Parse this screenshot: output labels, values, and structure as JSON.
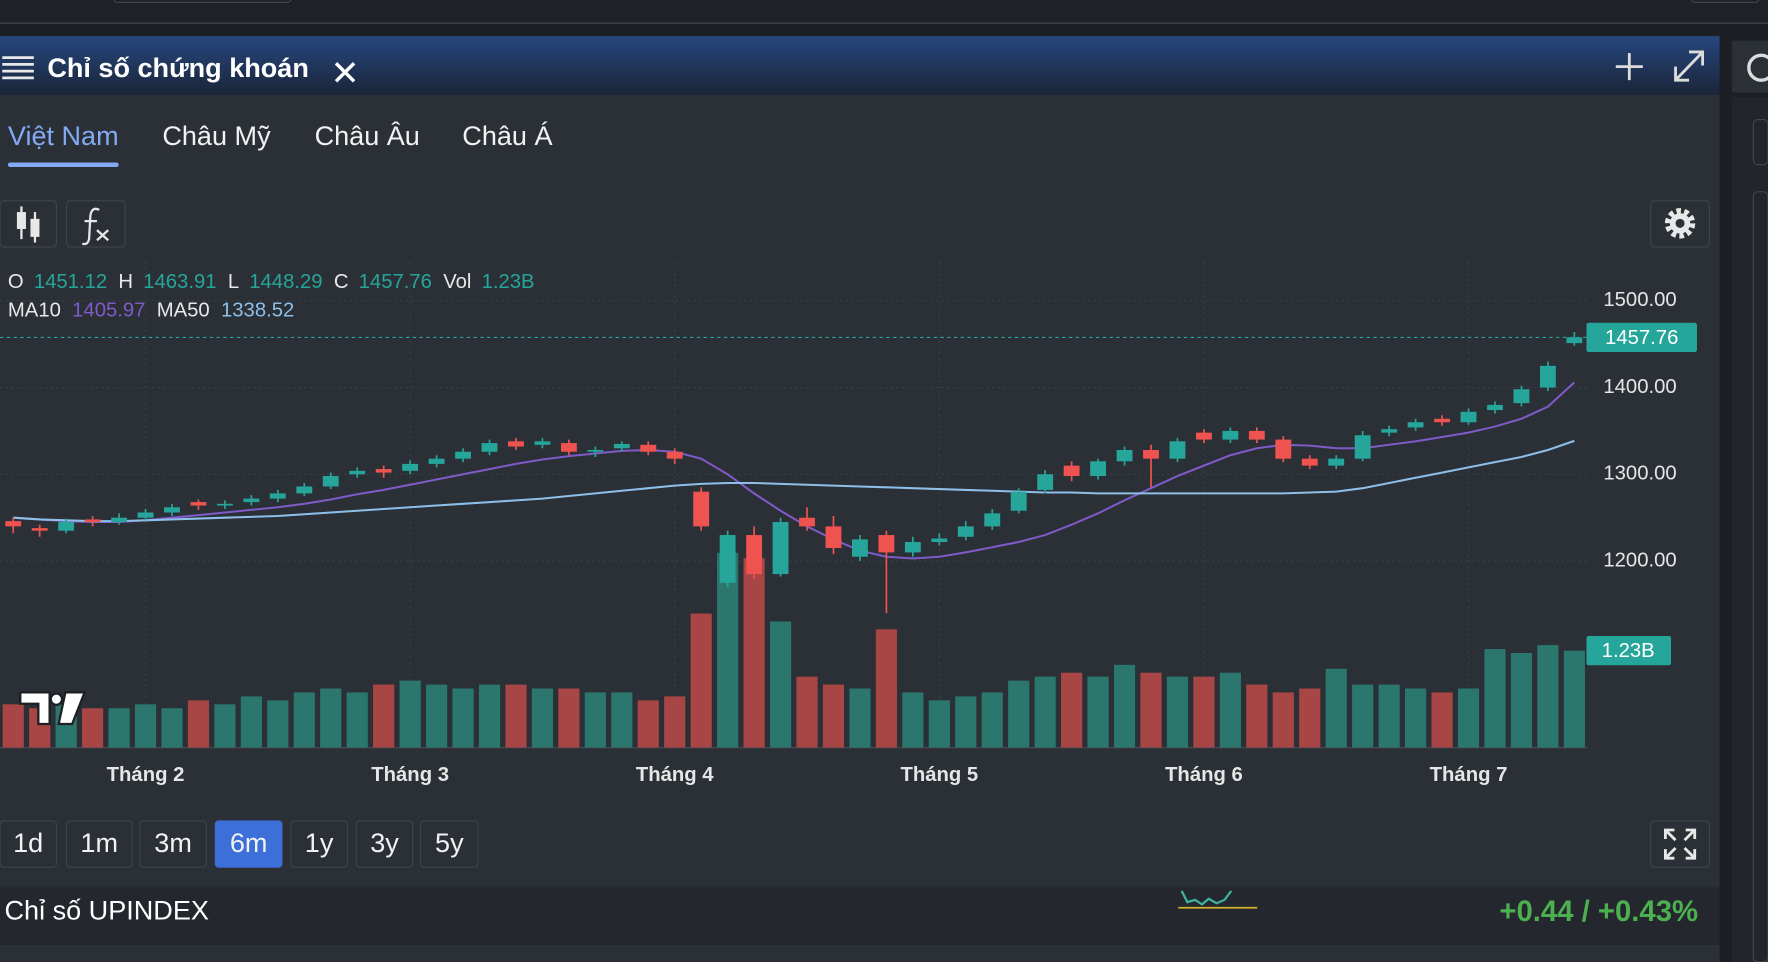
{
  "ui": {
    "header_title": "Chỉ số chứng khoán",
    "tabs": [
      "Việt Nam",
      "Châu Mỹ",
      "Châu Âu",
      "Châu Á"
    ],
    "active_tab": 0,
    "ranges": [
      "1d",
      "1m",
      "3m",
      "6m",
      "1y",
      "3y",
      "5y"
    ],
    "active_range": 3,
    "footer": {
      "name": "Chỉ số UPINDEX",
      "change": "+0.44 / +0.43%"
    }
  },
  "chart_data": {
    "type": "candlestick",
    "categories": [
      null,
      null,
      null,
      null,
      null,
      "Tháng 2",
      null,
      null,
      null,
      null,
      null,
      null,
      null,
      null,
      null,
      "Tháng 3",
      null,
      null,
      null,
      null,
      null,
      null,
      null,
      null,
      null,
      "Tháng 4",
      null,
      null,
      null,
      null,
      null,
      null,
      null,
      null,
      null,
      "Tháng 5",
      null,
      null,
      null,
      null,
      null,
      null,
      null,
      null,
      null,
      "Tháng 6",
      null,
      null,
      null,
      null,
      null,
      null,
      null,
      null,
      null,
      "Tháng 7",
      null,
      null,
      null,
      null
    ],
    "ohlc_labels": [
      "O",
      "H",
      "L",
      "C"
    ],
    "open": [
      1246,
      1238,
      1235,
      1248,
      1245,
      1250,
      1256,
      1268,
      1264,
      1268,
      1272,
      1278,
      1286,
      1300,
      1306,
      1304,
      1312,
      1318,
      1326,
      1338,
      1334,
      1336,
      1326,
      1330,
      1334,
      1326,
      1280,
      1175,
      1230,
      1185,
      1250,
      1240,
      1205,
      1230,
      1210,
      1222,
      1228,
      1240,
      1258,
      1282,
      1310,
      1298,
      1315,
      1328,
      1318,
      1348,
      1340,
      1350,
      1340,
      1318,
      1310,
      1318,
      1348,
      1354,
      1364,
      1360,
      1374,
      1382,
      1400,
      1451.12
    ],
    "high": [
      1250,
      1242,
      1249,
      1252,
      1255,
      1260,
      1266,
      1271,
      1270,
      1276,
      1282,
      1290,
      1302,
      1308,
      1310,
      1316,
      1322,
      1330,
      1340,
      1342,
      1342,
      1340,
      1332,
      1338,
      1338,
      1330,
      1285,
      1235,
      1240,
      1250,
      1262,
      1252,
      1230,
      1235,
      1228,
      1232,
      1246,
      1260,
      1284,
      1305,
      1315,
      1318,
      1332,
      1334,
      1342,
      1352,
      1354,
      1354,
      1344,
      1322,
      1322,
      1350,
      1356,
      1364,
      1368,
      1376,
      1384,
      1402,
      1430,
      1463.91
    ],
    "low": [
      1232,
      1228,
      1232,
      1240,
      1242,
      1247,
      1252,
      1259,
      1260,
      1264,
      1268,
      1275,
      1283,
      1296,
      1296,
      1300,
      1308,
      1314,
      1322,
      1328,
      1330,
      1322,
      1320,
      1326,
      1322,
      1312,
      1235,
      1170,
      1180,
      1182,
      1235,
      1208,
      1200,
      1140,
      1205,
      1218,
      1224,
      1236,
      1255,
      1278,
      1292,
      1294,
      1310,
      1285,
      1314,
      1336,
      1336,
      1336,
      1314,
      1306,
      1306,
      1315,
      1344,
      1350,
      1356,
      1357,
      1370,
      1378,
      1396,
      1448.29
    ],
    "close": [
      1240,
      1235,
      1245,
      1245,
      1250,
      1256,
      1262,
      1264,
      1266,
      1272,
      1278,
      1286,
      1298,
      1304,
      1302,
      1312,
      1318,
      1326,
      1336,
      1332,
      1338,
      1326,
      1328,
      1335,
      1326,
      1318,
      1240,
      1230,
      1185,
      1245,
      1240,
      1215,
      1225,
      1210,
      1222,
      1226,
      1240,
      1255,
      1280,
      1300,
      1298,
      1315,
      1328,
      1318,
      1338,
      1340,
      1350,
      1340,
      1318,
      1310,
      1318,
      1345,
      1352,
      1360,
      1360,
      1372,
      1380,
      1398,
      1425,
      1457.76
    ],
    "colors": {
      "up": "#26a69a",
      "down": "#ef5350"
    },
    "volume": {
      "name": "Vol",
      "axis": "y2",
      "colors": {
        "up": "#2b776d",
        "down": "#a84646"
      },
      "values": [
        0.55,
        0.5,
        0.55,
        0.5,
        0.5,
        0.55,
        0.5,
        0.6,
        0.55,
        0.65,
        0.6,
        0.7,
        0.75,
        0.7,
        0.8,
        0.85,
        0.8,
        0.75,
        0.8,
        0.8,
        0.75,
        0.75,
        0.7,
        0.7,
        0.6,
        0.65,
        1.7,
        2.47,
        2.4,
        1.6,
        0.9,
        0.8,
        0.75,
        1.5,
        0.7,
        0.6,
        0.65,
        0.7,
        0.85,
        0.9,
        0.95,
        0.9,
        1.05,
        0.95,
        0.9,
        0.9,
        0.95,
        0.8,
        0.7,
        0.75,
        1.0,
        0.8,
        0.8,
        0.75,
        0.7,
        0.75,
        1.25,
        1.2,
        1.3,
        1.23
      ],
      "value_labels": [
        null,
        null,
        null,
        null,
        null,
        null,
        null,
        null,
        null,
        null,
        null,
        null,
        null,
        null,
        null,
        null,
        null,
        null,
        null,
        null,
        null,
        null,
        null,
        null,
        null,
        null,
        null,
        null,
        null,
        null,
        null,
        null,
        null,
        null,
        null,
        null,
        null,
        null,
        null,
        null,
        null,
        null,
        null,
        null,
        null,
        null,
        null,
        null,
        null,
        null,
        null,
        null,
        null,
        null,
        null,
        null,
        null,
        null,
        null,
        "1.23B"
      ]
    },
    "series": [
      {
        "name": "MA10",
        "color": "#7e5bc8",
        "values": [
          1250,
          1248,
          1246,
          1245,
          1245,
          1247,
          1250,
          1253,
          1256,
          1259,
          1262,
          1266,
          1271,
          1277,
          1282,
          1288,
          1294,
          1300,
          1306,
          1312,
          1317,
          1321,
          1324,
          1327,
          1328,
          1326,
          1318,
          1300,
          1278,
          1258,
          1240,
          1225,
          1212,
          1205,
          1203,
          1205,
          1210,
          1216,
          1222,
          1230,
          1242,
          1255,
          1270,
          1284,
          1298,
          1310,
          1322,
          1330,
          1334,
          1333,
          1330,
          1330,
          1334,
          1338,
          1343,
          1348,
          1355,
          1364,
          1378,
          1405.97
        ]
      },
      {
        "name": "MA50",
        "color": "#8dbfe8",
        "values": [
          1250,
          1248,
          1247,
          1246,
          1246,
          1247,
          1248,
          1249,
          1250,
          1251,
          1252,
          1254,
          1256,
          1258,
          1260,
          1262,
          1264,
          1266,
          1268,
          1270,
          1272,
          1275,
          1278,
          1281,
          1284,
          1287,
          1289,
          1290,
          1290,
          1289,
          1288,
          1287,
          1286,
          1285,
          1284,
          1283,
          1282,
          1281,
          1280,
          1279,
          1279,
          1278,
          1278,
          1278,
          1278,
          1278,
          1278,
          1278,
          1278,
          1279,
          1280,
          1284,
          1290,
          1296,
          1302,
          1308,
          1314,
          1320,
          1328,
          1338.52
        ]
      }
    ],
    "ylim": [
      985,
      1545
    ],
    "yticks": [
      {
        "value": 1200,
        "label": "1200.00"
      },
      {
        "value": 1300,
        "label": "1300.00"
      },
      {
        "value": 1400,
        "label": "1400.00"
      },
      {
        "value": 1500,
        "label": "1500.00"
      }
    ],
    "y2lim": [
      0,
      6.16
    ],
    "grid": true
  }
}
